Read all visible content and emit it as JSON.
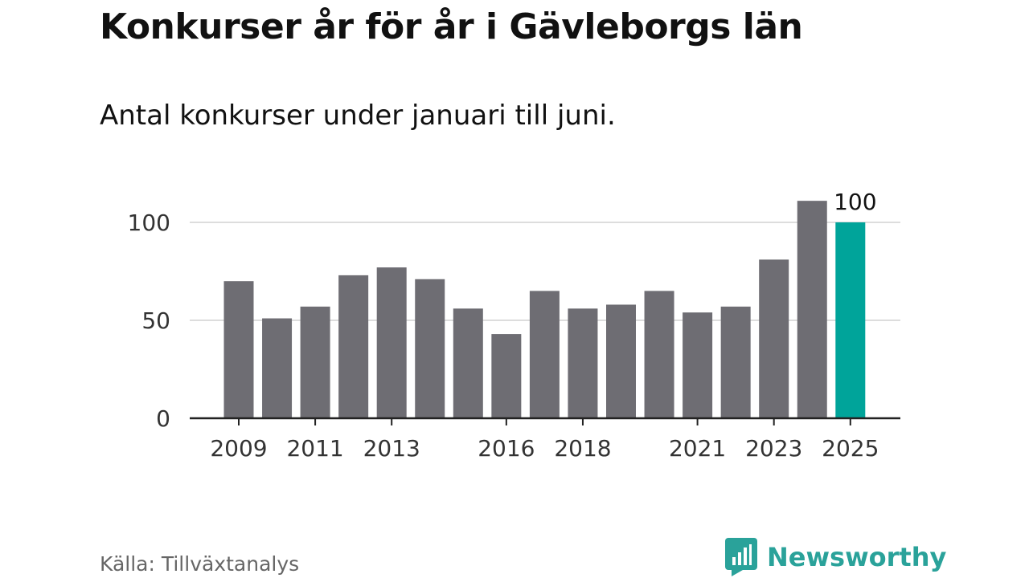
{
  "title": "Konkurser år för år i Gävleborgs län",
  "subtitle": "Antal konkurser under januari till juni.",
  "source": "Källa: Tillväxtanalys",
  "brand": {
    "name": "Newsworthy",
    "icon": "bar-chart-bubble-icon",
    "color": "#2aa29a"
  },
  "chart_data": {
    "type": "bar",
    "categories": [
      "2009",
      "2010",
      "2011",
      "2012",
      "2013",
      "2014",
      "2015",
      "2016",
      "2017",
      "2018",
      "2019",
      "2020",
      "2021",
      "2022",
      "2023",
      "2024",
      "2025"
    ],
    "values": [
      70,
      51,
      57,
      73,
      77,
      71,
      56,
      43,
      65,
      56,
      58,
      65,
      54,
      57,
      81,
      111,
      100
    ],
    "x_tick_labels": [
      "2009",
      "2011",
      "2013",
      "2016",
      "2018",
      "2021",
      "2023",
      "2025"
    ],
    "y_ticks": [
      0,
      50,
      100
    ],
    "ylim": [
      0,
      115
    ],
    "grid": true,
    "highlight": {
      "category": "2025",
      "label": "100"
    },
    "colors": {
      "bar": "#6e6d73",
      "highlight": "#00a49a",
      "grid": "#dddddd",
      "axis": "#222222"
    }
  }
}
